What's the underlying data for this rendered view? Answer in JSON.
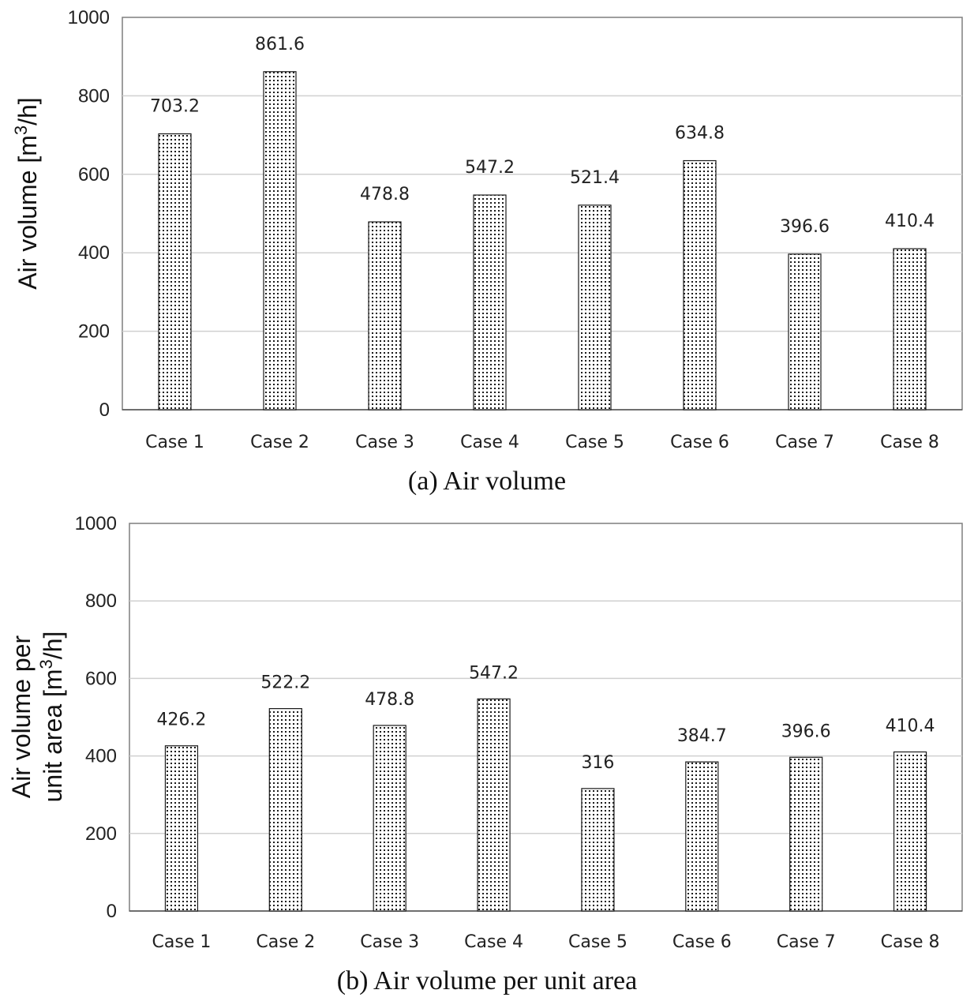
{
  "chart_data": [
    {
      "type": "bar",
      "categories": [
        "Case 1",
        "Case 2",
        "Case 3",
        "Case 4",
        "Case 5",
        "Case 6",
        "Case 7",
        "Case 8"
      ],
      "values": [
        703.2,
        861.6,
        478.8,
        547.2,
        521.4,
        634.8,
        396.6,
        410.4
      ],
      "data_labels": [
        "703.2",
        "861.6",
        "478.8",
        "547.2",
        "521.4",
        "634.8",
        "396.6",
        "410.4"
      ],
      "ylabel_lines": [
        "Air volume [m",
        "3",
        "/h]"
      ],
      "yticks": [
        0,
        200,
        400,
        600,
        800,
        1000
      ],
      "ylim": [
        0,
        1000
      ],
      "caption": "(a) Air volume",
      "grid": true,
      "legend": "none"
    },
    {
      "type": "bar",
      "categories": [
        "Case 1",
        "Case 2",
        "Case 3",
        "Case 4",
        "Case 5",
        "Case 6",
        "Case 7",
        "Case 8"
      ],
      "values": [
        426.2,
        522.2,
        478.8,
        547.2,
        316,
        384.7,
        396.6,
        410.4
      ],
      "data_labels": [
        "426.2",
        "522.2",
        "478.8",
        "547.2",
        "316",
        "384.7",
        "396.6",
        "410.4"
      ],
      "ylabel_line1": "Air volume per",
      "ylabel_line2": [
        "unit area [m",
        "3",
        "/h]"
      ],
      "yticks": [
        0,
        200,
        400,
        600,
        800,
        1000
      ],
      "ylim": [
        0,
        1000
      ],
      "caption": "(b) Air volume per unit area",
      "grid": true,
      "legend": "none"
    }
  ]
}
